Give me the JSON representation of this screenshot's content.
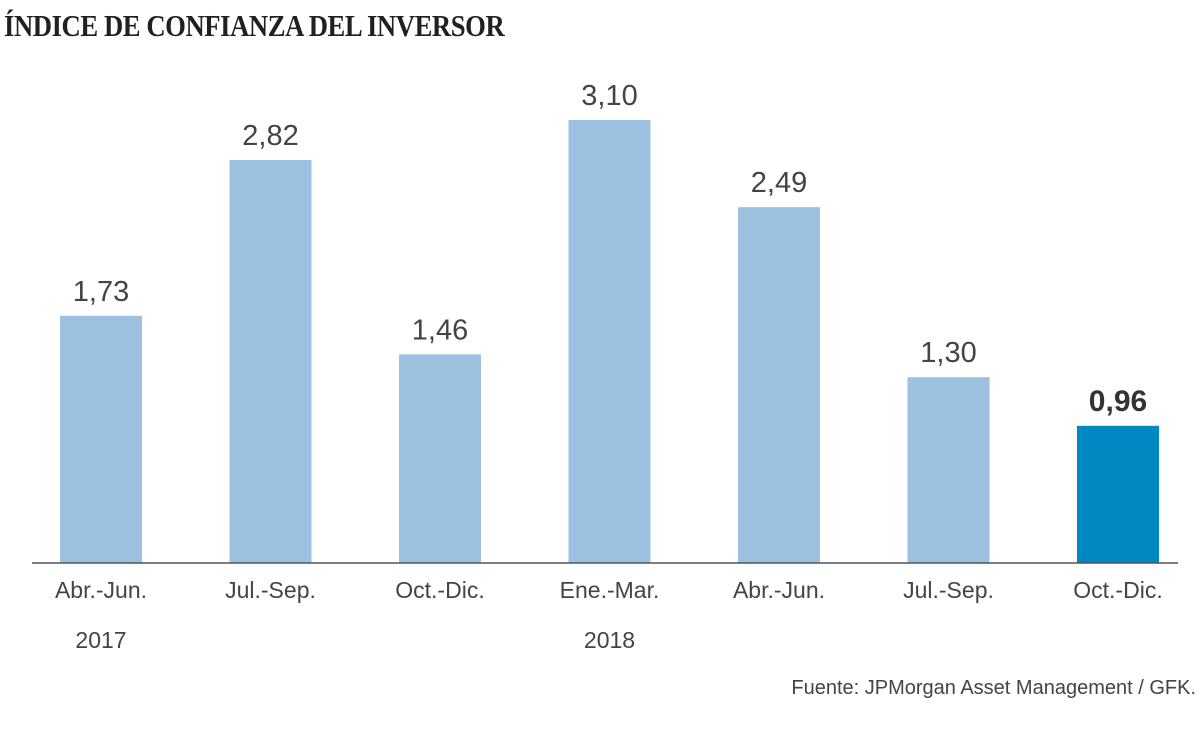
{
  "chart_data": {
    "type": "bar",
    "title": "ÍNDICE DE CONFIANZA DEL INVERSOR",
    "categories": [
      "Abr.-Jun.",
      "Jul.-Sep.",
      "Oct.-Dic.",
      "Ene.-Mar.",
      "Abr.-Jun.",
      "Jul.-Sep.",
      "Oct.-Dic."
    ],
    "year_labels": [
      {
        "label": "2017",
        "category_index": 0
      },
      {
        "label": "2018",
        "category_index": 3
      }
    ],
    "values": [
      1.73,
      2.82,
      1.46,
      3.1,
      2.49,
      1.3,
      0.96
    ],
    "value_labels": [
      "1,73",
      "2,82",
      "1,46",
      "3,10",
      "2,49",
      "1,30",
      "0,96"
    ],
    "highlight_index": 6,
    "ylim": [
      0,
      3.1
    ],
    "xlabel": "",
    "ylabel": "",
    "grid": false,
    "colors": {
      "bar": "#9bc0e0",
      "highlight": "#0088c2",
      "axis": "#555555"
    }
  },
  "source": "Fuente: JPMorgan Asset Management / GFK."
}
